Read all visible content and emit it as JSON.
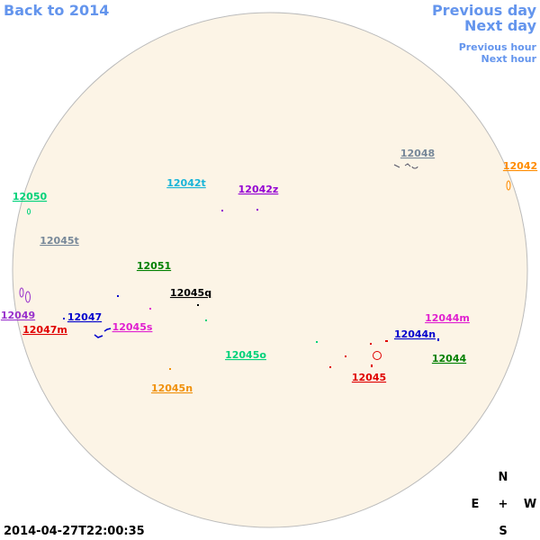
{
  "nav": {
    "back": "Back to 2014",
    "previous_day": "Previous day",
    "next_day": "Next day",
    "previous_hour": "Previous hour",
    "next_hour": "Next hour"
  },
  "regions": [
    {
      "label": "12048",
      "color": "#778899"
    },
    {
      "label": "12042",
      "color": "#ff8c00"
    },
    {
      "label": "12050",
      "color": "#00d27a"
    },
    {
      "label": "12042t",
      "color": "#18b4d8"
    },
    {
      "label": "12042z",
      "color": "#9400d3"
    },
    {
      "label": "12045t",
      "color": "#778899"
    },
    {
      "label": "12051",
      "color": "#008000"
    },
    {
      "label": "12045q",
      "color": "#000000"
    },
    {
      "label": "12049",
      "color": "#9932cc"
    },
    {
      "label": "12047",
      "color": "#0000cd"
    },
    {
      "label": "12047m",
      "color": "#e00000"
    },
    {
      "label": "12045s",
      "color": "#e020d0"
    },
    {
      "label": "12044m",
      "color": "#e020d0"
    },
    {
      "label": "12044n",
      "color": "#0000cd"
    },
    {
      "label": "12044",
      "color": "#008000"
    },
    {
      "label": "12045o",
      "color": "#00d27a"
    },
    {
      "label": "12045",
      "color": "#e00000"
    },
    {
      "label": "12045n",
      "color": "#f0900a"
    }
  ],
  "timestamp": "2014-04-27T22:00:35",
  "compass": {
    "north": "N",
    "east": "E",
    "center": "+",
    "west": "W",
    "south": "S"
  }
}
